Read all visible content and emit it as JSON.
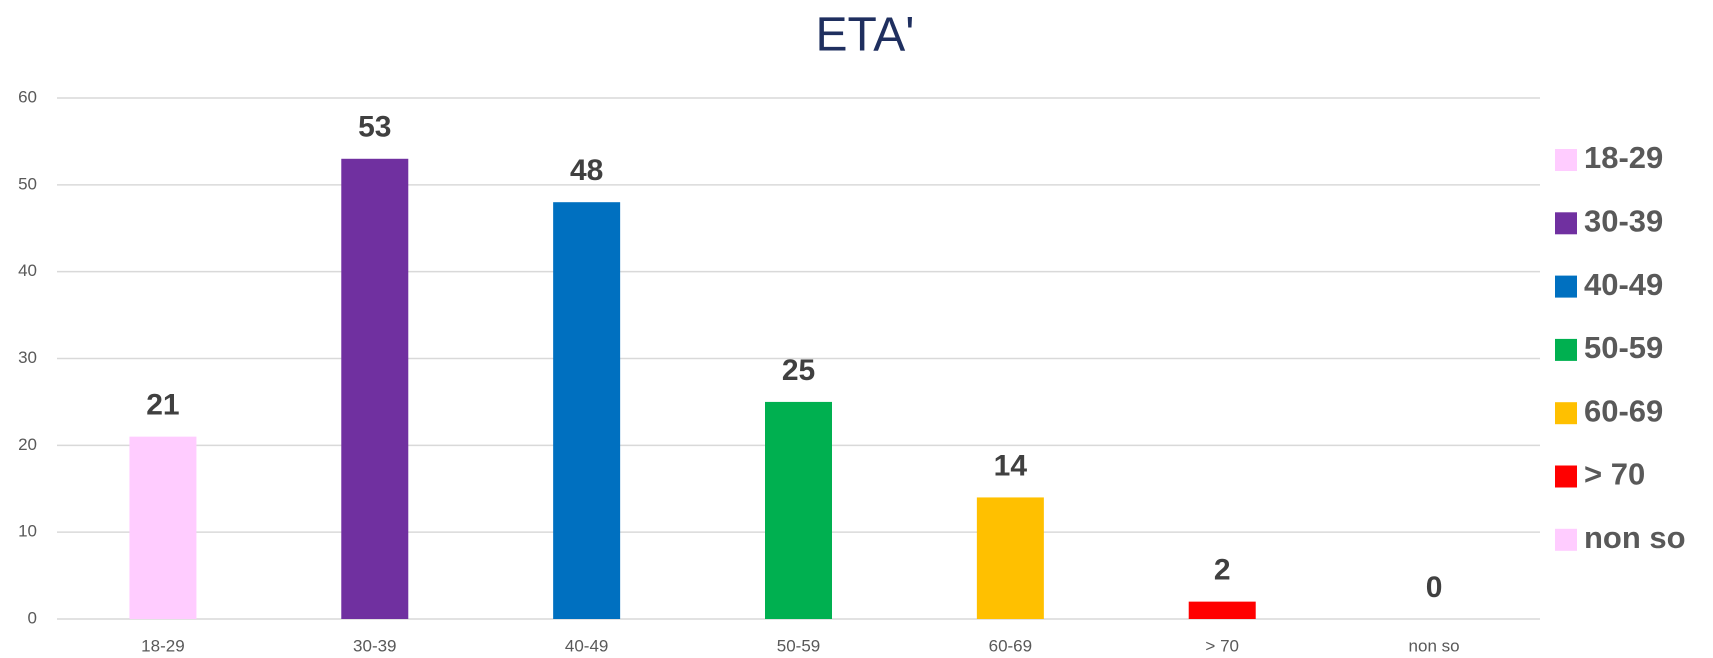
{
  "chart_data": {
    "type": "bar",
    "title": "ETA'",
    "categories": [
      "18-29",
      "30-39",
      "40-49",
      "50-59",
      "60-69",
      "> 70",
      "non so"
    ],
    "values": [
      21,
      53,
      48,
      25,
      14,
      2,
      0
    ],
    "colors": [
      "#ffccff",
      "#7030a0",
      "#0070c0",
      "#00b050",
      "#ffc000",
      "#ff0000",
      "#ffccff"
    ],
    "ylim": [
      0,
      60
    ],
    "yticks": [
      0,
      10,
      20,
      30,
      40,
      50,
      60
    ],
    "grid": true,
    "legend": "right"
  }
}
